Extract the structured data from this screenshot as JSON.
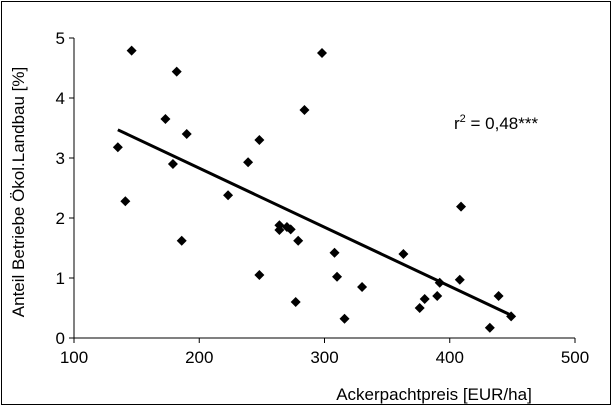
{
  "chart_data": {
    "type": "scatter",
    "title": "",
    "xlabel": "Ackerpachtpreis [EUR/ha]",
    "ylabel": "Anteil Betriebe Ökol.Landbau [%]",
    "xlim": [
      100,
      500
    ],
    "ylim": [
      0,
      5
    ],
    "x_ticks": [
      "100",
      "200",
      "300",
      "400",
      "500"
    ],
    "y_ticks": [
      "0",
      "1",
      "2",
      "3",
      "4",
      "5"
    ],
    "grid": false,
    "legend": "none",
    "marker_color": "#000000",
    "points": [
      {
        "x": 135,
        "y": 3.18
      },
      {
        "x": 141,
        "y": 2.28
      },
      {
        "x": 146,
        "y": 4.79
      },
      {
        "x": 173,
        "y": 3.65
      },
      {
        "x": 179,
        "y": 2.9
      },
      {
        "x": 182,
        "y": 4.44
      },
      {
        "x": 186,
        "y": 1.62
      },
      {
        "x": 190,
        "y": 3.4
      },
      {
        "x": 223,
        "y": 2.38
      },
      {
        "x": 239,
        "y": 2.93
      },
      {
        "x": 248,
        "y": 3.3
      },
      {
        "x": 248,
        "y": 1.05
      },
      {
        "x": 264,
        "y": 1.88
      },
      {
        "x": 264,
        "y": 1.8
      },
      {
        "x": 270,
        "y": 1.85
      },
      {
        "x": 273,
        "y": 1.81
      },
      {
        "x": 277,
        "y": 0.6
      },
      {
        "x": 279,
        "y": 1.62
      },
      {
        "x": 284,
        "y": 3.8
      },
      {
        "x": 298,
        "y": 4.75
      },
      {
        "x": 308,
        "y": 1.42
      },
      {
        "x": 310,
        "y": 1.02
      },
      {
        "x": 316,
        "y": 0.32
      },
      {
        "x": 330,
        "y": 0.85
      },
      {
        "x": 363,
        "y": 1.4
      },
      {
        "x": 376,
        "y": 0.5
      },
      {
        "x": 380,
        "y": 0.65
      },
      {
        "x": 390,
        "y": 0.7
      },
      {
        "x": 392,
        "y": 0.92
      },
      {
        "x": 408,
        "y": 0.97
      },
      {
        "x": 409,
        "y": 2.19
      },
      {
        "x": 432,
        "y": 0.17
      },
      {
        "x": 439,
        "y": 0.7
      },
      {
        "x": 449,
        "y": 0.36
      }
    ],
    "trendline": {
      "x": [
        135,
        449
      ],
      "y": [
        3.47,
        0.38
      ]
    },
    "annotation": {
      "r_symbol": "r",
      "superscript": "2",
      "text": " = 0,48***"
    }
  }
}
